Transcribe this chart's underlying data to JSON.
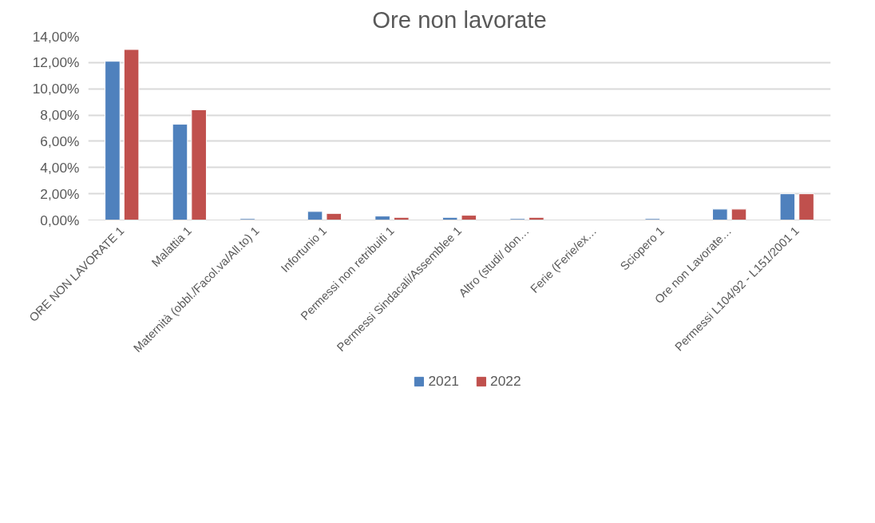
{
  "chart_data": {
    "type": "bar",
    "title": "Ore non lavorate",
    "categories": [
      "ORE NON LAVORATE 1",
      "Malattia 1",
      "Maternità (obbl./Facol.va/All.to) 1",
      "Infortunio 1",
      "Permessi non retribuiti 1",
      "Permessi Sindacali/Assemblee 1",
      "Altro (studi/ don…",
      "Ferie (Ferie/ex…",
      "Sciopero 1",
      "Ore non Lavorate…",
      "Permessi L104/92 - L151/2001 1"
    ],
    "series": [
      {
        "name": "2021",
        "color": "#4f81bd",
        "values": [
          12.1,
          7.3,
          0.1,
          0.65,
          0.3,
          0.2,
          0.1,
          null,
          0.1,
          0.83,
          2.0
        ]
      },
      {
        "name": "2022",
        "color": "#c0504d",
        "values": [
          13.0,
          8.4,
          null,
          0.5,
          0.2,
          0.36,
          0.2,
          null,
          null,
          0.83,
          2.0
        ]
      }
    ],
    "ylim": [
      0,
      14
    ],
    "yticks": [
      {
        "value": 0,
        "label": "0,00%"
      },
      {
        "value": 2,
        "label": "2,00%"
      },
      {
        "value": 4,
        "label": "4,00%"
      },
      {
        "value": 6,
        "label": "6,00%"
      },
      {
        "value": 8,
        "label": "8,00%"
      },
      {
        "value": 10,
        "label": "10,00%"
      },
      {
        "value": 12,
        "label": "12,00%"
      },
      {
        "value": 14,
        "label": "14,00%"
      }
    ],
    "grid": "y",
    "legend": "bottom"
  }
}
